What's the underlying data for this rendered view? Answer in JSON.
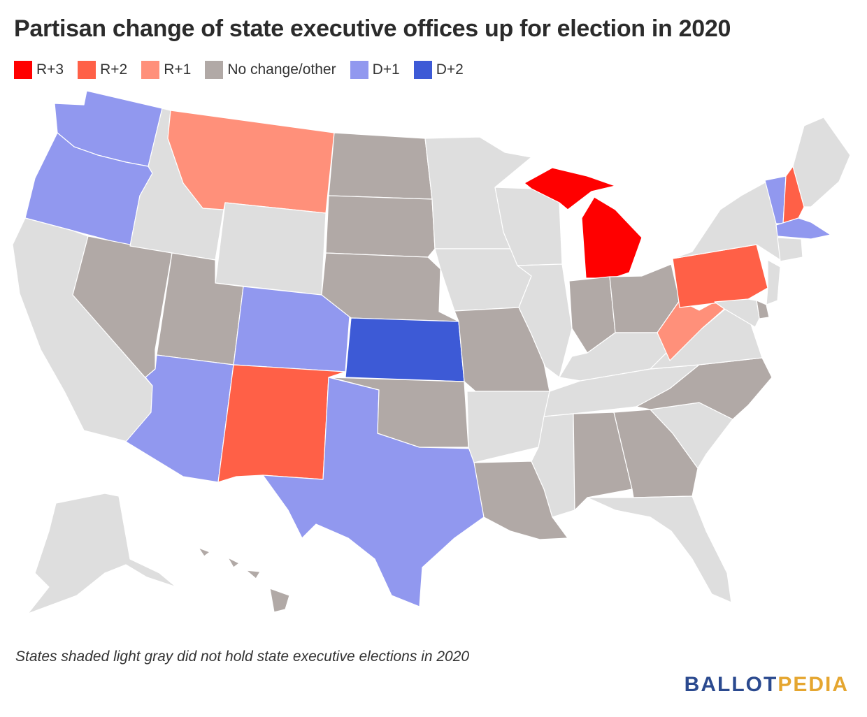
{
  "title": "Partisan change of state executive offices up for election in 2020",
  "legend": [
    {
      "label": "R+3",
      "color": "#ff0000"
    },
    {
      "label": "R+2",
      "color": "#ff6047"
    },
    {
      "label": "R+1",
      "color": "#ff907a"
    },
    {
      "label": "No change/other",
      "color": "#b1a9a6"
    },
    {
      "label": "D+1",
      "color": "#9198ef"
    },
    {
      "label": "D+2",
      "color": "#3d5ad6"
    }
  ],
  "no_election_color": "#dedede",
  "states": {
    "WA": "D+1",
    "OR": "D+1",
    "CA": "none",
    "NV": "No change/other",
    "ID": "none",
    "MT": "R+1",
    "WY": "none",
    "UT": "No change/other",
    "AZ": "D+1",
    "CO": "D+1",
    "NM": "R+2",
    "ND": "No change/other",
    "SD": "No change/other",
    "NE": "No change/other",
    "KS": "D+2",
    "OK": "No change/other",
    "TX": "D+1",
    "MN": "none",
    "IA": "none",
    "MO": "No change/other",
    "AR": "none",
    "LA": "No change/other",
    "WI": "none",
    "IL": "none",
    "MI": "R+3",
    "IN": "No change/other",
    "OH": "No change/other",
    "KY": "none",
    "TN": "none",
    "MS": "none",
    "AL": "No change/other",
    "GA": "No change/other",
    "FL": "none",
    "SC": "none",
    "NC": "No change/other",
    "VA": "none",
    "WV": "R+1",
    "PA": "R+2",
    "NY": "none",
    "VT": "D+1",
    "NH": "R+2",
    "ME": "none",
    "MA": "D+1",
    "CT": "none",
    "NJ": "none",
    "DE": "No change/other",
    "MD": "none",
    "AK": "none",
    "HI": "No change/other"
  },
  "note": "States shaded light gray did not hold state executive elections in 2020",
  "brand": {
    "part1": "BALLOT",
    "part2": "PEDIA"
  }
}
